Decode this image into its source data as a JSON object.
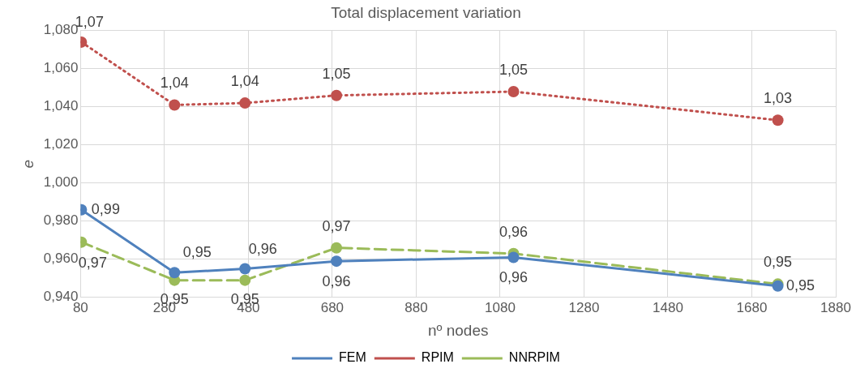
{
  "chart_data": {
    "type": "line",
    "title": "Total displacement variation",
    "xlabel": "nº nodes",
    "ylabel": "e",
    "xlim": [
      80,
      1880
    ],
    "xticks": [
      80,
      280,
      480,
      680,
      880,
      1080,
      1280,
      1480,
      1680,
      1880
    ],
    "ylim": [
      0.94,
      1.08
    ],
    "yticks": [
      {
        "value": 0.94,
        "label": "0,940"
      },
      {
        "value": 0.96,
        "label": "0,960"
      },
      {
        "value": 0.98,
        "label": "0,980"
      },
      {
        "value": 1.0,
        "label": "1,000"
      },
      {
        "value": 1.02,
        "label": "1,020"
      },
      {
        "value": 1.04,
        "label": "1,040"
      },
      {
        "value": 1.06,
        "label": "1,060"
      },
      {
        "value": 1.08,
        "label": "1,080"
      }
    ],
    "grid": true,
    "legend": "bottom",
    "marker": "circle",
    "x": [
      82,
      304,
      472,
      690,
      1112,
      1742
    ],
    "series": [
      {
        "name": "FEM",
        "color": "#4f81bd",
        "line_style": "solid",
        "values": [
          0.986,
          0.953,
          0.955,
          0.959,
          0.961,
          0.946
        ],
        "value_labels": [
          "0,99",
          "0,95",
          "0,96",
          "0,96",
          "0,96",
          "0,95"
        ]
      },
      {
        "name": "RPIM",
        "color": "#c0504d",
        "line_style": "dotted",
        "values": [
          1.074,
          1.041,
          1.042,
          1.046,
          1.048,
          1.033
        ],
        "value_labels": [
          "1,07",
          "1,04",
          "1,04",
          "1,05",
          "1,05",
          "1,03"
        ]
      },
      {
        "name": "NNRPIM",
        "color": "#9bbb59",
        "line_style": "dashed",
        "values": [
          0.969,
          0.949,
          0.949,
          0.966,
          0.963,
          0.947
        ],
        "value_labels": [
          "0,97",
          "0,95",
          "0,95",
          "0,97",
          "0,96",
          "0,95"
        ]
      }
    ]
  }
}
